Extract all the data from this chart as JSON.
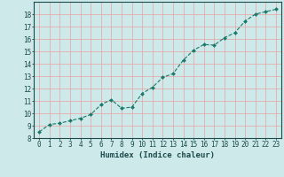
{
  "x": [
    0,
    1,
    2,
    3,
    4,
    5,
    6,
    7,
    8,
    9,
    10,
    11,
    12,
    13,
    14,
    15,
    16,
    17,
    18,
    19,
    20,
    21,
    22,
    23
  ],
  "y": [
    8.5,
    9.1,
    9.2,
    9.4,
    9.6,
    9.9,
    10.7,
    11.1,
    10.4,
    10.5,
    11.6,
    12.1,
    12.9,
    13.2,
    14.3,
    15.1,
    15.55,
    15.5,
    16.1,
    16.5,
    17.45,
    18.0,
    18.2,
    18.4
  ],
  "line_color": "#1a7a6a",
  "marker": "D",
  "marker_size": 2.0,
  "bg_color": "#cee9e9",
  "grid_color": "#e8a0a0",
  "xlabel": "Humidex (Indice chaleur)",
  "ylabel_ticks": [
    8,
    9,
    10,
    11,
    12,
    13,
    14,
    15,
    16,
    17,
    18
  ],
  "xlim": [
    -0.5,
    23.5
  ],
  "ylim": [
    8,
    19
  ],
  "xlabel_fontsize": 6.5,
  "tick_fontsize": 5.5,
  "label_color": "#1a4a4a"
}
